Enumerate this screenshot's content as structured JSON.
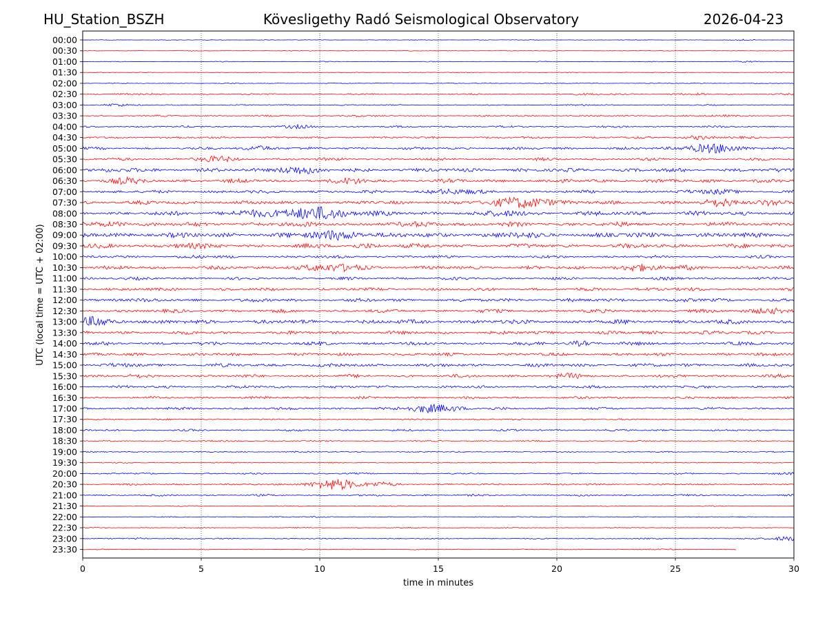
{
  "header": {
    "station": "HU_Station_BSZH",
    "observatory": "Kövesligethy Radó Seismological Observatory",
    "date": "2026-04-23"
  },
  "chart_data": {
    "type": "line",
    "title": "Kövesligethy Radó Seismological Observatory",
    "xlabel": "time in minutes",
    "ylabel": "UTC (local time = UTC + 02:00)",
    "xlim": [
      0,
      30
    ],
    "xticks": [
      0,
      5,
      10,
      15,
      20,
      25,
      30
    ],
    "xtick_labels": [
      "0",
      "5",
      "10",
      "15",
      "20",
      "25",
      "30"
    ],
    "vertical_gridlines_at": [
      5,
      10,
      15,
      20,
      25
    ],
    "grid": "vertical dotted",
    "colors": {
      "even_rows": "#0000ff",
      "odd_rows": "#ff0000"
    },
    "last_trace_ends_at_minute": 27.6,
    "rows": [
      {
        "label": "00:00",
        "base_amplitude": 0.1,
        "bursts": [
          [
            27.9,
            0.15,
            0.7
          ]
        ]
      },
      {
        "label": "00:30",
        "base_amplitude": 0.1,
        "bursts": []
      },
      {
        "label": "01:00",
        "base_amplitude": 0.12,
        "bursts": [
          [
            27.9,
            0.1,
            1.2
          ]
        ]
      },
      {
        "label": "01:30",
        "base_amplitude": 0.12,
        "bursts": []
      },
      {
        "label": "02:00",
        "base_amplitude": 0.14,
        "bursts": []
      },
      {
        "label": "02:30",
        "base_amplitude": 0.25,
        "bursts": [
          [
            1.7,
            0.15,
            0.8
          ],
          [
            21.6,
            0.15,
            0.8
          ],
          [
            22.4,
            0.15,
            0.8
          ],
          [
            26.1,
            0.15,
            0.8
          ]
        ]
      },
      {
        "label": "03:00",
        "base_amplitude": 0.18,
        "bursts": [
          [
            1.4,
            0.4,
            1.0
          ],
          [
            21.0,
            0.15,
            1.0
          ]
        ]
      },
      {
        "label": "03:30",
        "base_amplitude": 0.25,
        "bursts": [
          [
            11.4,
            0.2,
            0.8
          ],
          [
            26.9,
            0.15,
            1.2
          ]
        ]
      },
      {
        "label": "04:00",
        "base_amplitude": 0.3,
        "bursts": [
          [
            9.1,
            0.3,
            1.4
          ],
          [
            14.9,
            0.15,
            0.9
          ]
        ]
      },
      {
        "label": "04:30",
        "base_amplitude": 0.35,
        "bursts": [
          [
            26.0,
            0.4,
            1.2
          ]
        ]
      },
      {
        "label": "05:00",
        "base_amplitude": 0.4,
        "bursts": [
          [
            7.5,
            0.6,
            1.3
          ],
          [
            26.5,
            1.2,
            2.2
          ]
        ]
      },
      {
        "label": "05:30",
        "base_amplitude": 0.45,
        "bursts": [
          [
            5.5,
            0.6,
            1.5
          ]
        ]
      },
      {
        "label": "06:00",
        "base_amplitude": 0.6,
        "bursts": [
          [
            9.0,
            1.0,
            1.6
          ],
          [
            2.0,
            0.2,
            1.3
          ]
        ]
      },
      {
        "label": "06:30",
        "base_amplitude": 0.6,
        "bursts": [
          [
            1.7,
            0.5,
            1.6
          ],
          [
            11.4,
            0.5,
            1.5
          ]
        ]
      },
      {
        "label": "07:00",
        "base_amplitude": 0.5,
        "bursts": [
          [
            15.4,
            0.6,
            1.5
          ],
          [
            16.6,
            0.08,
            1.4
          ],
          [
            26.8,
            0.6,
            1.4
          ]
        ]
      },
      {
        "label": "07:30",
        "base_amplitude": 0.6,
        "bursts": [
          [
            18.6,
            1.4,
            2.4
          ],
          [
            27.0,
            0.8,
            1.5
          ],
          [
            29.0,
            0.6,
            1.3
          ]
        ]
      },
      {
        "label": "08:00",
        "base_amplitude": 0.7,
        "bursts": [
          [
            7.0,
            0.8,
            1.5
          ],
          [
            9.5,
            1.3,
            2.0
          ],
          [
            10.5,
            0.8,
            2.0
          ],
          [
            18.0,
            0.5,
            1.4
          ]
        ]
      },
      {
        "label": "08:30",
        "base_amplitude": 0.7,
        "bursts": [
          [
            1.3,
            0.5,
            1.2
          ],
          [
            9.8,
            0.15,
            1.6
          ],
          [
            14.5,
            0.4,
            1.2
          ]
        ]
      },
      {
        "label": "09:00",
        "base_amplitude": 0.8,
        "bursts": [
          [
            10.1,
            0.4,
            1.6
          ],
          [
            11.0,
            0.8,
            1.8
          ],
          [
            18.5,
            0.4,
            1.2
          ]
        ]
      },
      {
        "label": "09:30",
        "base_amplitude": 0.7,
        "bursts": [
          [
            4.3,
            0.4,
            1.2
          ],
          [
            12.0,
            0.4,
            1.2
          ]
        ]
      },
      {
        "label": "10:00",
        "base_amplitude": 0.45,
        "bursts": [
          [
            4.6,
            0.2,
            1.2
          ]
        ]
      },
      {
        "label": "10:30",
        "base_amplitude": 0.55,
        "bursts": [
          [
            9.5,
            0.5,
            1.6
          ],
          [
            11.0,
            0.8,
            1.6
          ],
          [
            23.4,
            0.7,
            1.8
          ],
          [
            25.7,
            0.3,
            1.2
          ]
        ]
      },
      {
        "label": "11:00",
        "base_amplitude": 0.45,
        "bursts": []
      },
      {
        "label": "11:30",
        "base_amplitude": 0.5,
        "bursts": [
          [
            24.1,
            0.15,
            1.3
          ]
        ]
      },
      {
        "label": "12:00",
        "base_amplitude": 0.55,
        "bursts": [
          [
            1.5,
            0.15,
            1.0
          ],
          [
            25.5,
            0.15,
            0.8
          ]
        ]
      },
      {
        "label": "12:30",
        "base_amplitude": 0.55,
        "bursts": [
          [
            29.0,
            0.7,
            1.5
          ]
        ]
      },
      {
        "label": "13:00",
        "base_amplitude": 0.7,
        "bursts": [
          [
            0.5,
            1.0,
            1.5
          ]
        ]
      },
      {
        "label": "13:30",
        "base_amplitude": 0.55,
        "bursts": [
          [
            26.1,
            0.15,
            1.2
          ]
        ]
      },
      {
        "label": "14:00",
        "base_amplitude": 0.55,
        "bursts": [
          [
            21.0,
            0.5,
            1.0
          ]
        ]
      },
      {
        "label": "14:30",
        "base_amplitude": 0.5,
        "bursts": []
      },
      {
        "label": "15:00",
        "base_amplitude": 0.55,
        "bursts": [
          [
            2.3,
            0.15,
            1.2
          ]
        ]
      },
      {
        "label": "15:30",
        "base_amplitude": 0.5,
        "bursts": [
          [
            2.2,
            0.15,
            0.8
          ],
          [
            20.7,
            0.4,
            1.3
          ]
        ]
      },
      {
        "label": "16:00",
        "base_amplitude": 0.45,
        "bursts": [
          [
            6.8,
            0.08,
            1.2
          ],
          [
            9.9,
            0.1,
            1.0
          ]
        ]
      },
      {
        "label": "16:30",
        "base_amplitude": 0.4,
        "bursts": []
      },
      {
        "label": "17:00",
        "base_amplitude": 0.4,
        "bursts": [
          [
            14.5,
            1.0,
            1.6
          ],
          [
            15.5,
            0.5,
            1.5
          ]
        ]
      },
      {
        "label": "17:30",
        "base_amplitude": 0.25,
        "bursts": []
      },
      {
        "label": "18:00",
        "base_amplitude": 0.3,
        "bursts": [
          [
            1.2,
            0.15,
            1.0
          ]
        ]
      },
      {
        "label": "18:30",
        "base_amplitude": 0.2,
        "bursts": [
          [
            6.4,
            0.1,
            0.8
          ]
        ]
      },
      {
        "label": "19:00",
        "base_amplitude": 0.18,
        "bursts": [
          [
            9.0,
            0.08,
            1.0
          ]
        ]
      },
      {
        "label": "19:30",
        "base_amplitude": 0.18,
        "bursts": []
      },
      {
        "label": "20:00",
        "base_amplitude": 0.25,
        "bursts": [
          [
            30.0,
            0.12,
            1.5
          ]
        ]
      },
      {
        "label": "20:30",
        "base_amplitude": 0.3,
        "bursts": [
          [
            10.6,
            1.4,
            2.0
          ],
          [
            12.6,
            0.5,
            1.2
          ]
        ]
      },
      {
        "label": "21:00",
        "base_amplitude": 0.3,
        "bursts": [
          [
            14.5,
            0.1,
            0.8
          ]
        ]
      },
      {
        "label": "21:30",
        "base_amplitude": 0.15,
        "bursts": []
      },
      {
        "label": "22:00",
        "base_amplitude": 0.15,
        "bursts": [
          [
            9.9,
            0.1,
            1.2
          ],
          [
            19.8,
            0.08,
            1.0
          ]
        ]
      },
      {
        "label": "22:30",
        "base_amplitude": 0.15,
        "bursts": []
      },
      {
        "label": "23:00",
        "base_amplitude": 0.2,
        "bursts": [
          [
            2.4,
            0.2,
            0.7
          ],
          [
            29.8,
            0.6,
            1.6
          ]
        ]
      },
      {
        "label": "23:30",
        "base_amplitude": 0.15,
        "bursts": [
          [
            24.2,
            0.1,
            1.0
          ]
        ]
      }
    ]
  }
}
